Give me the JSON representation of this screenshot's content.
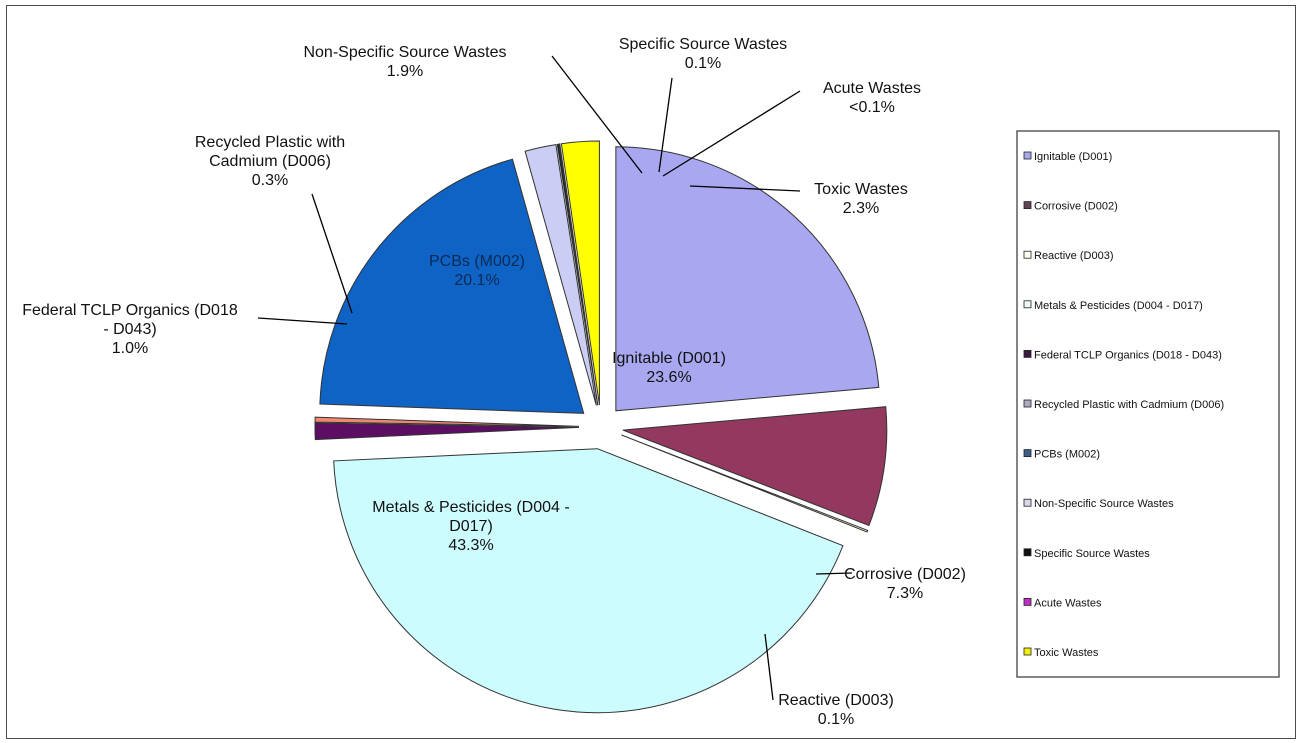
{
  "chart_data": {
    "type": "pie",
    "start_angle_deg": 0,
    "direction": "clockwise",
    "legend_position": "right",
    "slices": [
      {
        "id": "ignitable",
        "legend": "Ignitable (D001)",
        "label_lines": [
          "Ignitable (D001)",
          "23.6%"
        ],
        "value": 23.6,
        "color": "#a8a7f0",
        "legend_color": "#a8a7f0"
      },
      {
        "id": "corrosive",
        "legend": "Corrosive (D002)",
        "label_lines": [
          "Corrosive (D002)",
          "7.3%"
        ],
        "value": 7.3,
        "color": "#93385e",
        "legend_color": "#5e4452"
      },
      {
        "id": "reactive",
        "legend": "Reactive (D003)",
        "label_lines": [
          "Reactive (D003)",
          "0.1%"
        ],
        "value": 0.1,
        "color": "#fffedd",
        "legend_color": "#fffef0"
      },
      {
        "id": "metals",
        "legend": "Metals & Pesticides (D004 - D017)",
        "label_lines": [
          "Metals & Pesticides (D004 -",
          "D017)",
          "43.3%"
        ],
        "value": 43.3,
        "color": "#ccfcfe",
        "legend_color": "#eef8f8"
      },
      {
        "id": "tclp",
        "legend": "Federal TCLP Organics (D018 - D043)",
        "label_lines": [
          "Federal TCLP Organics (D018",
          "- D043)",
          "1.0%"
        ],
        "value": 1.0,
        "color": "#5c0e63",
        "legend_color": "#3a1a3e"
      },
      {
        "id": "cadmium",
        "legend": "Recycled Plastic with Cadmium (D006)",
        "label_lines": [
          "Recycled Plastic with",
          "Cadmium (D006)",
          "0.3%"
        ],
        "value": 0.3,
        "color": "#f08770",
        "legend_color": "#b0a8c0"
      },
      {
        "id": "pcbs",
        "legend": "PCBs (M002)",
        "label_lines": [
          "PCBs (M002)",
          "20.1%"
        ],
        "value": 20.1,
        "color": "#0f63c4",
        "legend_color": "#3a5e88"
      },
      {
        "id": "nonspecific",
        "legend": "Non-Specific Source Wastes",
        "label_lines": [
          "Non-Specific Source Wastes",
          "1.9%"
        ],
        "value": 1.9,
        "color": "#cccdf4",
        "legend_color": "#d8d8ec"
      },
      {
        "id": "specific",
        "legend": "Specific Source Wastes",
        "label_lines": [
          "Specific Source Wastes",
          "0.1%"
        ],
        "value": 0.1,
        "color": "#0a1a30",
        "legend_color": "#101010"
      },
      {
        "id": "acute",
        "legend": "Acute Wastes",
        "label_lines": [
          "Acute Wastes",
          "<0.1%"
        ],
        "value": 0.05,
        "color": "#111111",
        "legend_color": "#c030c0"
      },
      {
        "id": "toxic",
        "legend": "Toxic Wastes",
        "label_lines": [
          "Toxic Wastes",
          "2.3%"
        ],
        "value": 2.3,
        "color": "#ffff00",
        "legend_color": "#f0f000"
      }
    ]
  }
}
